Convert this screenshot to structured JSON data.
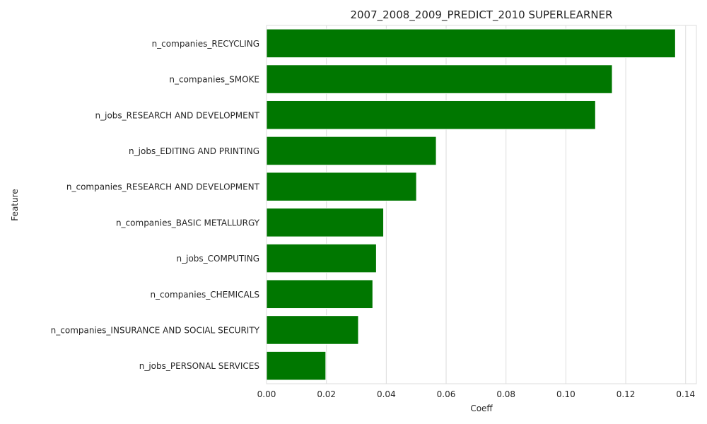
{
  "chart_data": {
    "type": "bar",
    "orientation": "horizontal",
    "title": "2007_2008_2009_PREDICT_2010 SUPERLEARNER",
    "xlabel": "Coeff",
    "ylabel": "Feature",
    "categories": [
      "n_companies_RECYCLING",
      "n_companies_SMOKE",
      "n_jobs_RESEARCH AND DEVELOPMENT",
      "n_jobs_EDITING AND PRINTING",
      "n_companies_RESEARCH AND DEVELOPMENT",
      "n_companies_BASIC METALLURGY",
      "n_jobs_COMPUTING",
      "n_companies_CHEMICALS",
      "n_companies_INSURANCE AND SOCIAL SECURITY",
      "n_jobs_PERSONAL SERVICES"
    ],
    "values": [
      0.1366,
      0.1155,
      0.1099,
      0.0567,
      0.0501,
      0.0391,
      0.0367,
      0.0355,
      0.0307,
      0.0198
    ],
    "xlim": [
      0,
      0.1436
    ],
    "xticks": [
      0.0,
      0.02,
      0.04,
      0.06,
      0.08,
      0.1,
      0.12,
      0.14
    ],
    "xtick_labels": [
      "0.00",
      "0.02",
      "0.04",
      "0.06",
      "0.08",
      "0.10",
      "0.12",
      "0.14"
    ],
    "grid": "vertical",
    "bar_color": "#007700",
    "grid_color": "#dcdcdc"
  }
}
